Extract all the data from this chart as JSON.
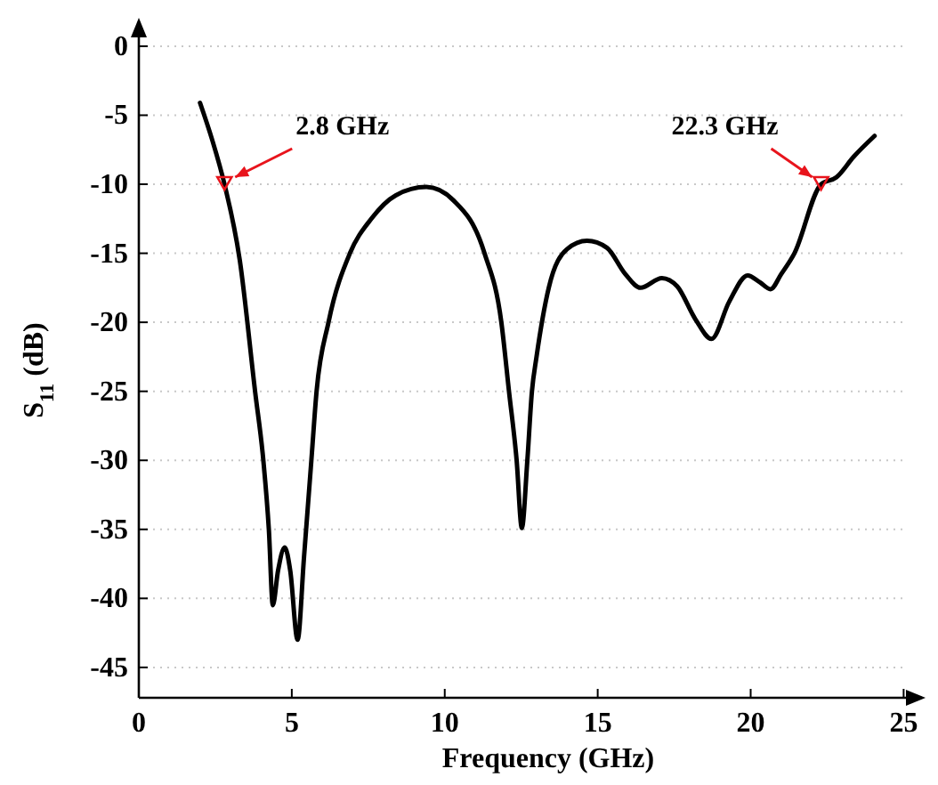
{
  "chart_data": {
    "type": "line",
    "xlabel": "Frequency (GHz)",
    "ylabel": "S$_{11}$ (dB)",
    "xlim": [
      0,
      25.6
    ],
    "xticks": [
      0,
      5,
      10,
      15,
      20,
      25
    ],
    "ylim": [
      -47.2,
      1.8
    ],
    "yticks": [
      0,
      -5,
      -10,
      -15,
      -20,
      -25,
      -30,
      -35,
      -40,
      -45
    ],
    "grid": "y",
    "marker": "none",
    "line_style": "solid",
    "series": [
      {
        "color": "#000000",
        "x": [
          2.0,
          2.4,
          2.8,
          3.3,
          3.8,
          4.07,
          4.25,
          4.38,
          4.55,
          4.77,
          4.95,
          5.19,
          5.4,
          5.64,
          5.81,
          6.2,
          6.9,
          7.6,
          8.4,
          9.4,
          10.3,
          11.3,
          11.85,
          12.1,
          12.35,
          12.52,
          12.7,
          12.85,
          13.0,
          13.4,
          14.0,
          14.65,
          15.3,
          15.9,
          16.4,
          17.1,
          17.6,
          18.2,
          18.72,
          19.3,
          19.9,
          20.3,
          20.65,
          21.0,
          21.43,
          22.3,
          22.8,
          23.37,
          24.05
        ],
        "values": [
          -4.1,
          -6.8,
          -10,
          -15.5,
          -25,
          -30,
          -35,
          -40.5,
          -38,
          -36.3,
          -38,
          -43,
          -37,
          -30,
          -25,
          -20,
          -15,
          -12.5,
          -10.8,
          -10.2,
          -11.2,
          -15,
          -20,
          -25,
          -30,
          -34.9,
          -30,
          -25,
          -22.5,
          -17.5,
          -14.7,
          -14.1,
          -14.6,
          -16.5,
          -17.5,
          -16.8,
          -17.4,
          -19.8,
          -21.2,
          -18.5,
          -16.6,
          -17.1,
          -17.6,
          -16.5,
          -15,
          -10,
          -9.5,
          -8.0,
          -6.5
        ]
      }
    ],
    "annotations": [
      {
        "text": "2.8 GHz",
        "x": 2.8,
        "y": -10
      },
      {
        "text": "22.3 GHz",
        "x": 22.3,
        "y": -10
      }
    ]
  }
}
